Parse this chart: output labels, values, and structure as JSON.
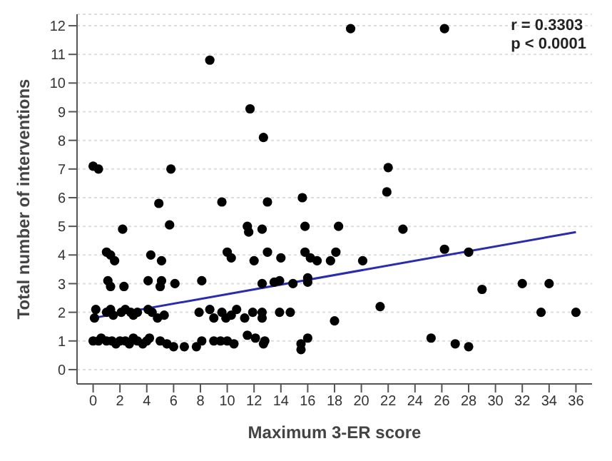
{
  "chart_data": {
    "type": "scatter",
    "xlabel": "Maximum 3-ER score",
    "ylabel": "Total number of interventions",
    "annotations": [
      "r = 0.3303",
      "p < 0.0001"
    ],
    "xlim": [
      -1.2,
      37.2
    ],
    "xticks": [
      0,
      2,
      4,
      6,
      8,
      10,
      12,
      14,
      16,
      18,
      20,
      22,
      24,
      26,
      28,
      30,
      32,
      34,
      36
    ],
    "ylim": [
      -0.5,
      12.4
    ],
    "yticks": [
      0,
      1,
      2,
      3,
      4,
      5,
      6,
      7,
      8,
      9,
      10,
      11,
      12
    ],
    "grid": "y",
    "series": [
      {
        "color": "#000000",
        "marker": "circle",
        "x": [
          8.7,
          11.7,
          12.7,
          19.2,
          26.2,
          0,
          0.4,
          5.8,
          22,
          21.9,
          4.9,
          9.6,
          13,
          15.6,
          23.1,
          26.2,
          28,
          27,
          28,
          25.2,
          29,
          32,
          34,
          33.4,
          36,
          21.4,
          20.1,
          18.3,
          2.2,
          5.7,
          11.5,
          11.6,
          12.6,
          15.8,
          1,
          1.3,
          1.6,
          4.3,
          5.1,
          10,
          10.3,
          12,
          13,
          14,
          15.8,
          16.2,
          16.7,
          17.7,
          18.1,
          1.1,
          1.3,
          2.3,
          4.1,
          5.1,
          5,
          6.1,
          8.1,
          12.6,
          13.5,
          13.9,
          14.9,
          16,
          16,
          0.2,
          0.1,
          1,
          1.3,
          1.5,
          2.1,
          2.4,
          2.8,
          3,
          3.3,
          4.1,
          4.4,
          4.8,
          5.3,
          7.9,
          8.7,
          9,
          9.6,
          9.9,
          10.3,
          10.7,
          11.3,
          11.9,
          12.6,
          12.6,
          13.9,
          14.7,
          18,
          0,
          0.4,
          0.6,
          1,
          1.4,
          1.7,
          2,
          2.4,
          2.7,
          3,
          3.3,
          3.7,
          4,
          4.2,
          5,
          5.5,
          6,
          6.8,
          7.7,
          8.1,
          9,
          9.5,
          10,
          10.5,
          11.5,
          12.1,
          12.7,
          12.8,
          15.5,
          15.5,
          16
        ],
        "values": [
          10.8,
          9.1,
          8.1,
          11.9,
          11.9,
          7.1,
          7,
          7,
          7.05,
          6.2,
          5.8,
          5.85,
          5.85,
          6,
          4.9,
          4.2,
          4.1,
          0.9,
          0.8,
          1.1,
          2.8,
          3,
          3,
          2,
          2,
          2.2,
          3.8,
          5,
          4.9,
          5.05,
          5,
          4.8,
          4.9,
          5,
          4.1,
          4,
          3.8,
          4,
          3.8,
          4.1,
          3.9,
          3.8,
          4.1,
          3.9,
          4.1,
          3.9,
          3.8,
          3.8,
          4.1,
          3.1,
          2.9,
          2.9,
          3.1,
          3.1,
          2.9,
          3,
          3.1,
          3,
          3.05,
          3.1,
          3,
          3.05,
          3.2,
          2.1,
          1.8,
          2,
          2.1,
          1.9,
          2,
          2.1,
          2,
          1.9,
          2,
          2.1,
          2,
          1.8,
          1.9,
          2,
          2.1,
          1.8,
          2,
          1.8,
          1.9,
          2.1,
          1.8,
          2,
          2,
          1.8,
          2,
          2,
          1.7,
          1,
          1,
          1.1,
          1,
          1,
          0.9,
          1,
          1,
          0.9,
          1.1,
          1,
          0.9,
          1,
          1.1,
          1,
          0.9,
          0.8,
          0.8,
          0.8,
          1,
          1,
          1,
          1,
          0.9,
          1.2,
          1.1,
          0.9,
          1,
          0.9,
          0.7,
          1.1
        ]
      },
      {
        "type": "line",
        "color": "#2b2bb0",
        "x": [
          0,
          36
        ],
        "values": [
          1.8,
          4.8
        ]
      }
    ]
  }
}
